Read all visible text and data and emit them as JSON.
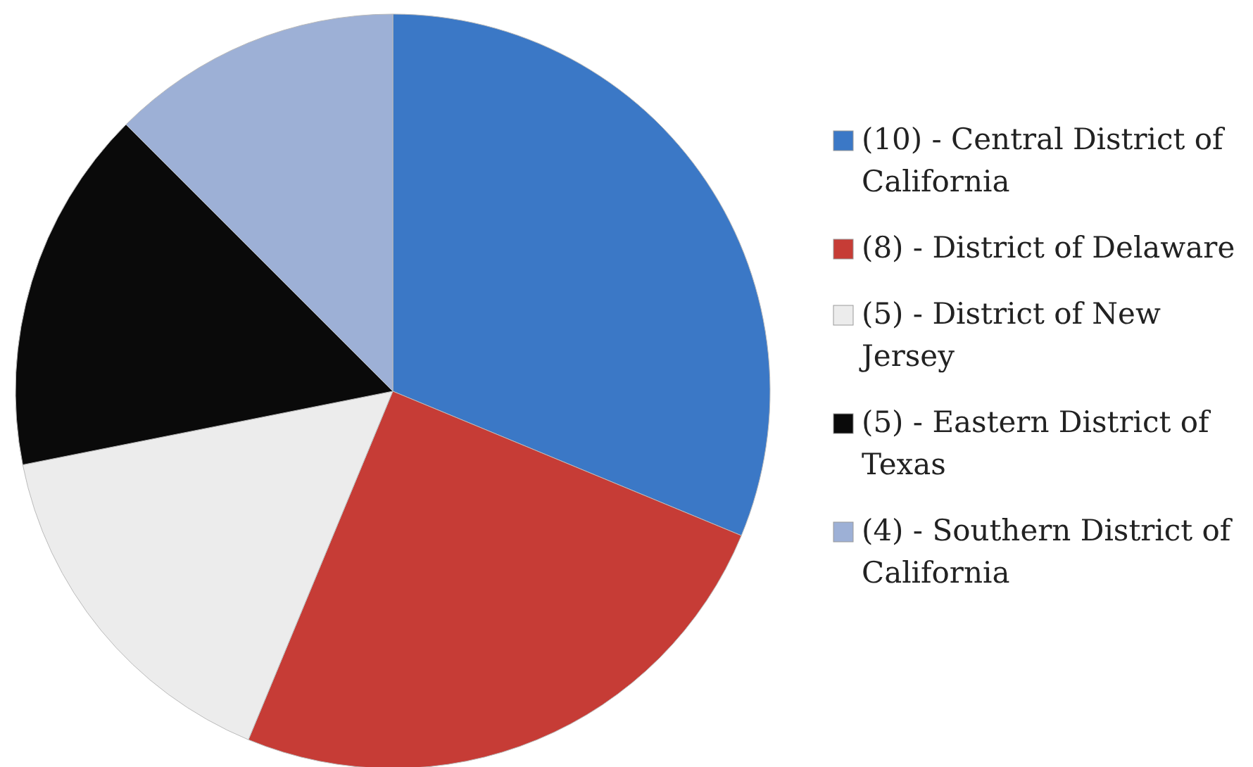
{
  "chart_data": {
    "type": "pie",
    "categories": [
      "(10) - Central District of California",
      "(8) - District of Delaware",
      "(5) - District of New Jersey",
      "(5) - Eastern District of Texas",
      "(4) - Southern District of California"
    ],
    "values": [
      10,
      8,
      5,
      5,
      4
    ],
    "colors": [
      "#3b78c6",
      "#c63c36",
      "#ececec",
      "#0a0a0a",
      "#9db0d6"
    ],
    "legend": "right"
  }
}
